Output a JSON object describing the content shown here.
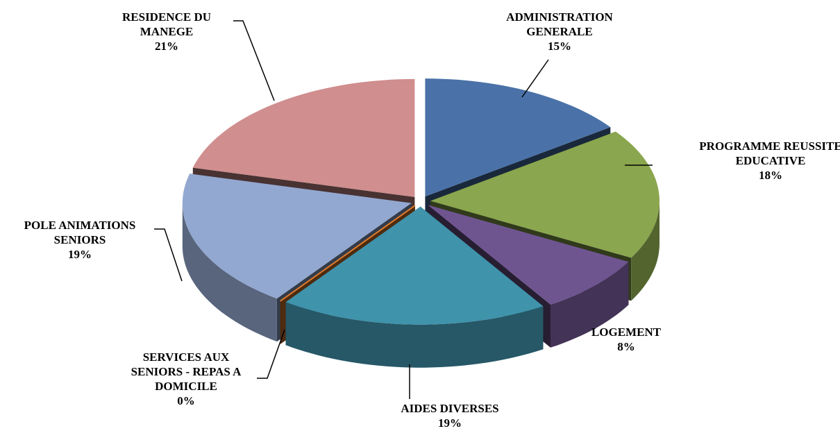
{
  "chart_data": {
    "type": "pie",
    "categories": [
      "ADMINISTRATION GENERALE",
      "PROGRAMME REUSSITE EDUCATIVE",
      "LOGEMENT",
      "AIDES DIVERSES",
      "SERVICES AUX SENIORS - REPAS A DOMICILE",
      "POLE ANIMATIONS SENIORS",
      "RESIDENCE  DU MANEGE"
    ],
    "values": [
      15,
      18,
      8,
      19,
      0,
      19,
      21
    ],
    "value_labels": [
      "15%",
      "18%",
      "8%",
      "19%",
      "0%",
      "19%",
      "21%"
    ],
    "colors": [
      "#4a72a8",
      "#8aa64e",
      "#6f5590",
      "#3f93ab",
      "#e07b2c",
      "#93a8d0",
      "#d08e8e"
    ]
  }
}
